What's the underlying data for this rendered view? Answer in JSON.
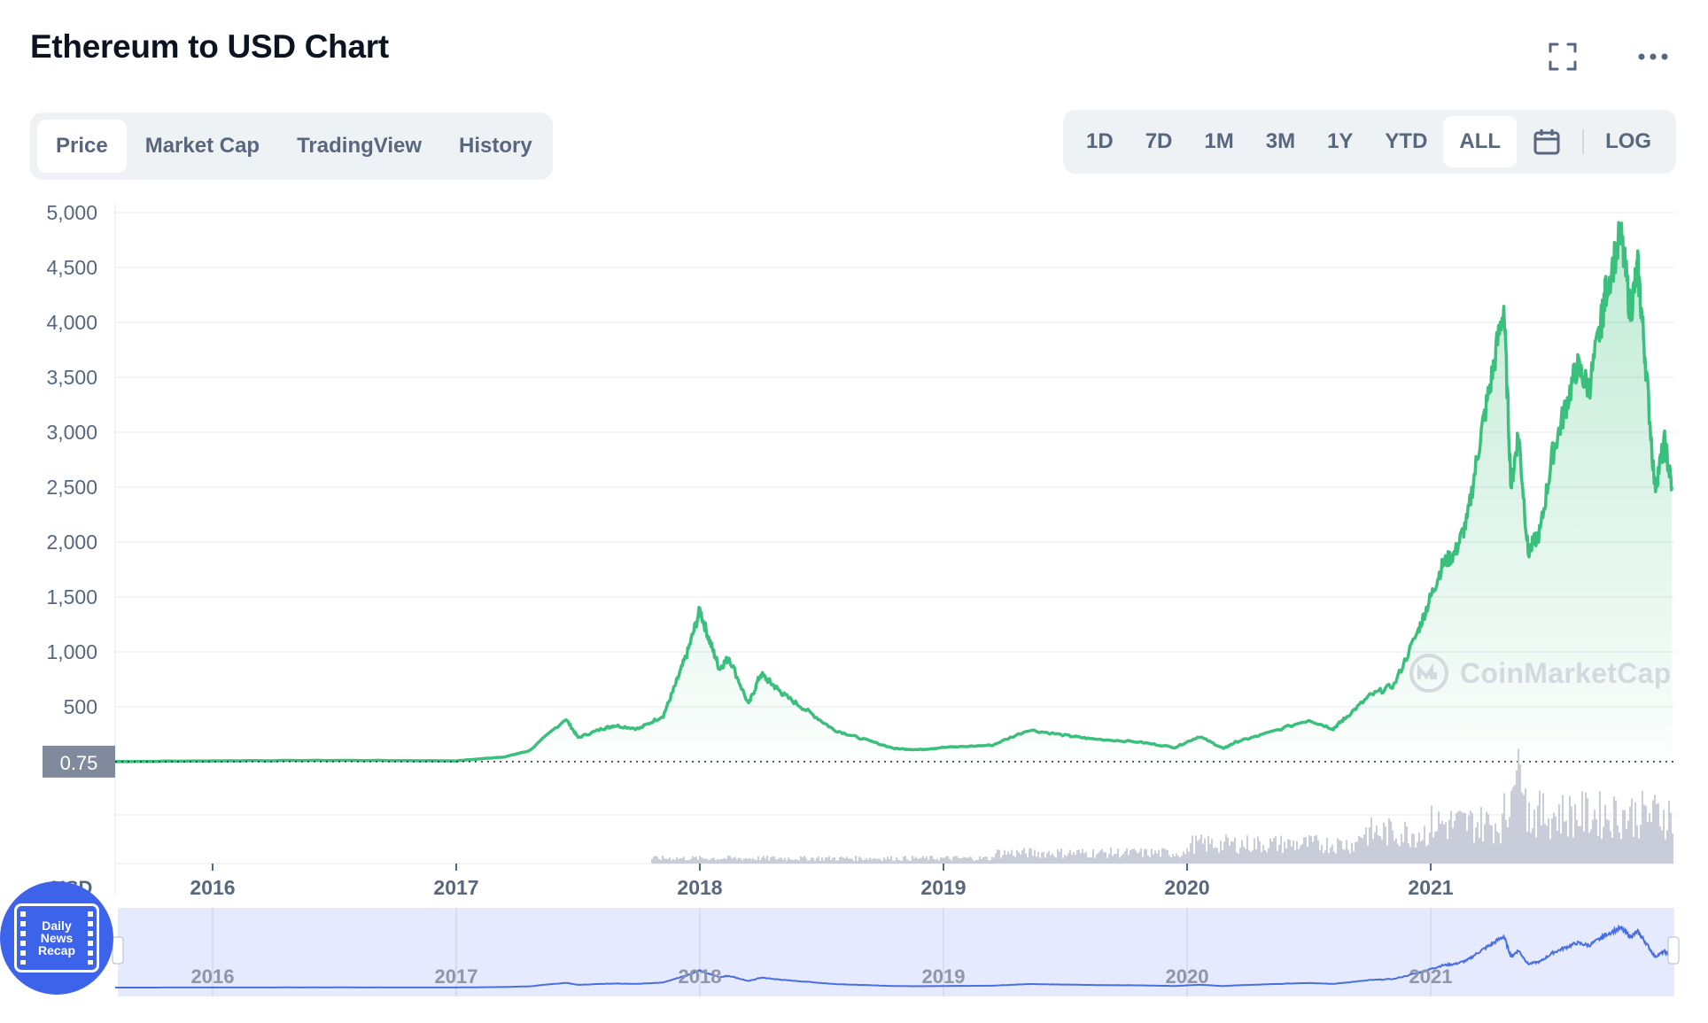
{
  "header": {
    "title": "Ethereum to USD Chart"
  },
  "icons": {
    "fullscreen": "fullscreen-icon",
    "more": "more-horizontal-icon",
    "calendar": "calendar-icon"
  },
  "tabs_left": [
    {
      "label": "Price",
      "active": true
    },
    {
      "label": "Market Cap",
      "active": false
    },
    {
      "label": "TradingView",
      "active": false
    },
    {
      "label": "History",
      "active": false
    }
  ],
  "tabs_right": [
    {
      "label": "1D",
      "active": false
    },
    {
      "label": "7D",
      "active": false
    },
    {
      "label": "1M",
      "active": false
    },
    {
      "label": "3M",
      "active": false
    },
    {
      "label": "1Y",
      "active": false
    },
    {
      "label": "YTD",
      "active": false
    },
    {
      "label": "ALL",
      "active": true
    }
  ],
  "log_label": "LOG",
  "watermark": "CoinMarketCap",
  "badge": {
    "line1": "Daily",
    "line2": "News",
    "line3": "Recap"
  },
  "colors": {
    "price_line": "#3bbf7c",
    "volume": "#c9cdd9",
    "navigator_line": "#4a6ee0",
    "navigator_fill": "#e6eaff"
  },
  "chart_data": {
    "type": "line",
    "ylabel": "USD",
    "ylim": [
      0,
      5000
    ],
    "y_ticks": [
      "5,000",
      "4,500",
      "4,000",
      "3,500",
      "3,000",
      "2,500",
      "2,000",
      "1,500",
      "1,000",
      "500"
    ],
    "x_ticks": [
      "2016",
      "2017",
      "2018",
      "2019",
      "2020",
      "2021"
    ],
    "navigator_ticks": [
      "2016",
      "2017",
      "2018",
      "2019",
      "2020",
      "2021"
    ],
    "current_value_label": "0.75",
    "grid": true,
    "series": [
      {
        "x": [
          2015.6,
          2016.0,
          2016.5,
          2017.0,
          2017.2,
          2017.3,
          2017.45,
          2017.5,
          2017.6,
          2017.65,
          2017.75,
          2017.85,
          2017.9,
          2017.95,
          2018.0,
          2018.04,
          2018.08,
          2018.12,
          2018.2,
          2018.25,
          2018.3,
          2018.35,
          2018.45,
          2018.55,
          2018.65,
          2018.8,
          2018.9,
          2019.0,
          2019.2,
          2019.35,
          2019.5,
          2019.6,
          2019.8,
          2019.95,
          2020.05,
          2020.15,
          2020.2,
          2020.3,
          2020.5,
          2020.6,
          2020.65,
          2020.75,
          2020.85,
          2020.95,
          2021.0,
          2021.05,
          2021.1,
          2021.15,
          2021.2,
          2021.25,
          2021.3,
          2021.33,
          2021.36,
          2021.4,
          2021.45,
          2021.5,
          2021.55,
          2021.6,
          2021.65,
          2021.7,
          2021.72,
          2021.78,
          2021.82,
          2021.85,
          2021.88,
          2021.92,
          2021.96,
          2021.99
        ],
        "y": [
          1,
          8,
          12,
          8,
          45,
          100,
          390,
          220,
          300,
          330,
          300,
          420,
          700,
          1000,
          1380,
          1100,
          850,
          950,
          520,
          800,
          700,
          600,
          450,
          290,
          220,
          120,
          110,
          130,
          150,
          290,
          240,
          210,
          180,
          130,
          230,
          120,
          180,
          240,
          380,
          300,
          400,
          600,
          700,
          1200,
          1500,
          1800,
          1900,
          2200,
          2900,
          3500,
          4150,
          2500,
          3000,
          1900,
          2100,
          2800,
          3200,
          3600,
          3400,
          4000,
          4300,
          4800,
          4100,
          4500,
          3700,
          2500,
          2900,
          2500
        ]
      }
    ]
  }
}
